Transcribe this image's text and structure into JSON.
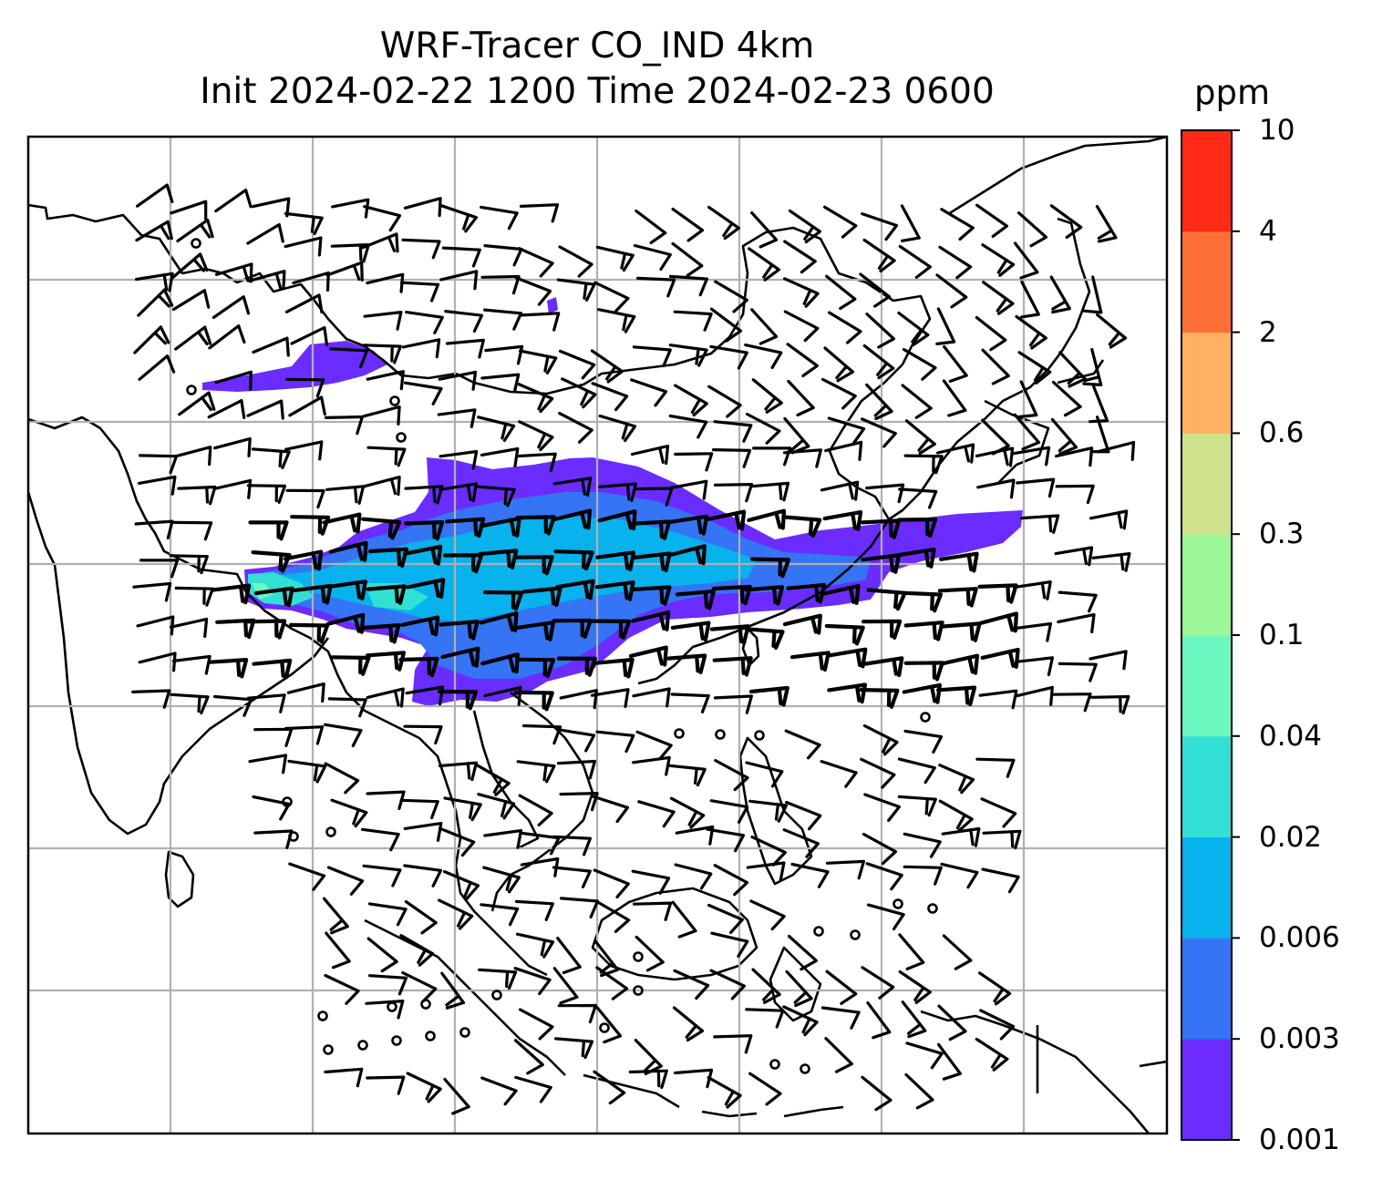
{
  "title_line1": "WRF-Tracer CO_IND 4km",
  "title_line2": "Init 2024-02-22 1200 Time 2024-02-23 0600",
  "colorbar": {
    "label": "ppm",
    "levels": [
      "0.001",
      "0.003",
      "0.006",
      "0.02",
      "0.04",
      "0.1",
      "0.3",
      "0.6",
      "2",
      "4",
      "10"
    ],
    "colors": [
      "#6a2cff",
      "#3474f5",
      "#08b2ec",
      "#32dfd4",
      "#6bf8bf",
      "#9df797",
      "#cfe18a",
      "#ffb060",
      "#ff7038",
      "#ff2b17"
    ]
  },
  "map_style": {
    "land_outline": "#000000",
    "gridlines": "#b0b0b0",
    "barbs": "#000000",
    "background": "#ffffff"
  }
}
